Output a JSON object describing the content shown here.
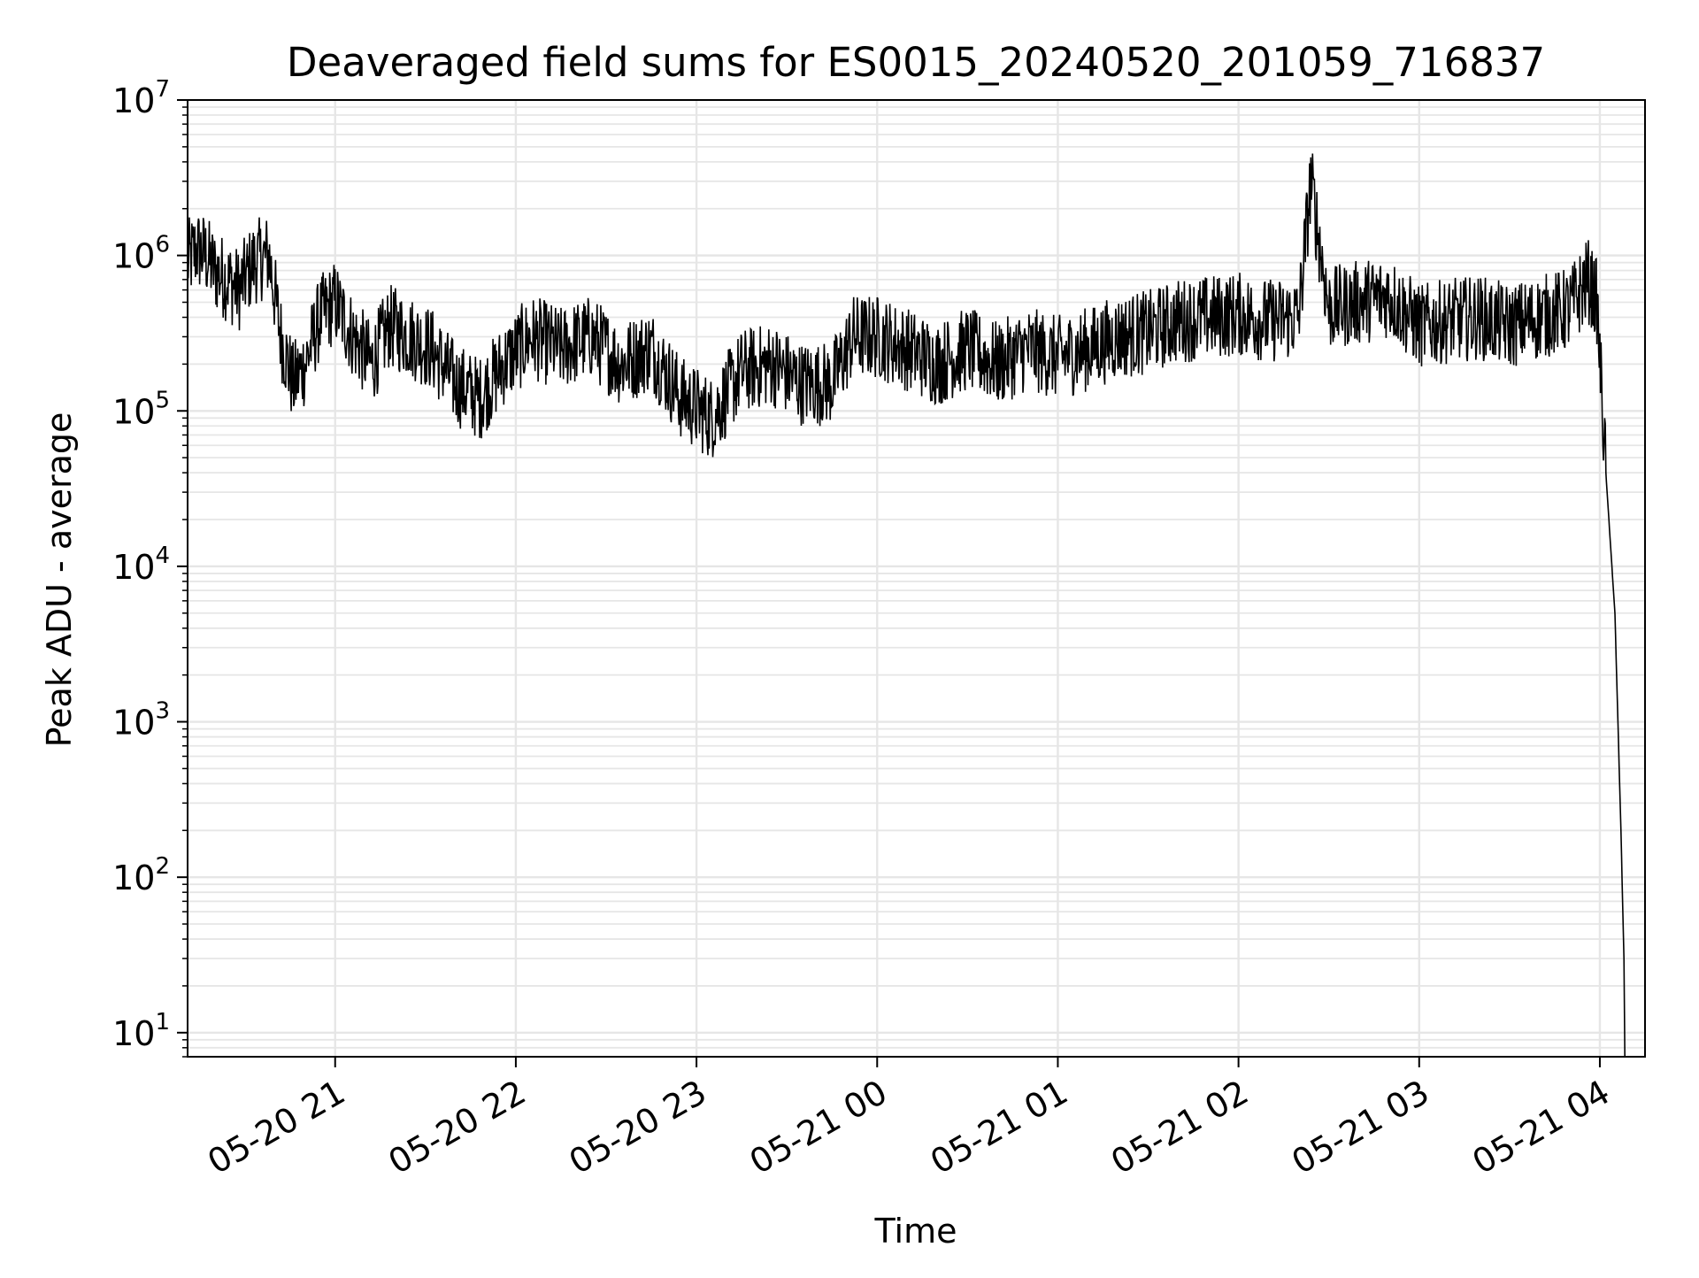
{
  "chart_data": {
    "type": "line",
    "title": "Deaveraged field sums for ES0015_20240520_201059_716837",
    "xlabel": "Time",
    "ylabel": "Peak ADU - average",
    "yscale": "log",
    "ylim": [
      7,
      10000000
    ],
    "xlim": [
      "2024-05-20 20:11",
      "2024-05-21 04:15"
    ],
    "grid": true,
    "x_ticks": [
      {
        "value": "2024-05-20 21:00",
        "label": "05-20 21"
      },
      {
        "value": "2024-05-20 22:00",
        "label": "05-20 22"
      },
      {
        "value": "2024-05-20 23:00",
        "label": "05-20 23"
      },
      {
        "value": "2024-05-21 00:00",
        "label": "05-21 00"
      },
      {
        "value": "2024-05-21 01:00",
        "label": "05-21 01"
      },
      {
        "value": "2024-05-21 02:00",
        "label": "05-21 02"
      },
      {
        "value": "2024-05-21 03:00",
        "label": "05-21 03"
      },
      {
        "value": "2024-05-21 04:00",
        "label": "05-21 04"
      }
    ],
    "y_ticks": [
      {
        "value": 10,
        "base": "10",
        "exp": "1"
      },
      {
        "value": 100,
        "base": "10",
        "exp": "2"
      },
      {
        "value": 1000,
        "base": "10",
        "exp": "3"
      },
      {
        "value": 10000,
        "base": "10",
        "exp": "4"
      },
      {
        "value": 100000,
        "base": "10",
        "exp": "5"
      },
      {
        "value": 1000000,
        "base": "10",
        "exp": "6"
      },
      {
        "value": 10000000,
        "base": "10",
        "exp": "7"
      }
    ],
    "line_color": "#000000",
    "grid_color": "#e6e6e6",
    "series": [
      {
        "x": [
          "2024-05-20 20:11",
          "2024-05-20 20:14",
          "2024-05-20 20:17",
          "2024-05-20 20:20",
          "2024-05-20 20:24",
          "2024-05-20 20:28",
          "2024-05-20 20:33",
          "2024-05-20 20:38",
          "2024-05-20 20:42",
          "2024-05-20 20:46",
          "2024-05-20 20:50",
          "2024-05-20 20:55",
          "2024-05-20 21:00",
          "2024-05-20 21:06",
          "2024-05-20 21:12",
          "2024-05-20 21:18",
          "2024-05-20 21:25",
          "2024-05-20 21:32",
          "2024-05-20 21:40",
          "2024-05-20 21:48",
          "2024-05-20 21:56",
          "2024-05-20 22:05",
          "2024-05-20 22:15",
          "2024-05-20 22:25",
          "2024-05-20 22:35",
          "2024-05-20 22:45",
          "2024-05-20 22:55",
          "2024-05-20 23:05",
          "2024-05-20 23:15",
          "2024-05-20 23:25",
          "2024-05-20 23:35",
          "2024-05-20 23:45",
          "2024-05-20 23:52",
          "2024-05-21 00:00",
          "2024-05-21 00:10",
          "2024-05-21 00:20",
          "2024-05-21 00:30",
          "2024-05-21 00:40",
          "2024-05-21 00:50",
          "2024-05-21 01:00",
          "2024-05-21 01:10",
          "2024-05-21 01:20",
          "2024-05-21 01:30",
          "2024-05-21 01:40",
          "2024-05-21 01:50",
          "2024-05-21 02:00",
          "2024-05-21 02:10",
          "2024-05-21 02:20",
          "2024-05-21 02:24",
          "2024-05-21 02:30",
          "2024-05-21 02:40",
          "2024-05-21 02:50",
          "2024-05-21 03:00",
          "2024-05-21 03:10",
          "2024-05-21 03:20",
          "2024-05-21 03:30",
          "2024-05-21 03:40",
          "2024-05-21 03:50",
          "2024-05-21 03:56",
          "2024-05-21 03:59",
          "2024-05-21 04:02",
          "2024-05-21 04:05",
          "2024-05-21 04:07",
          "2024-05-21 04:08"
        ],
        "y": [
          900000,
          1100000,
          1000000,
          800000,
          700000,
          600000,
          900000,
          1000000,
          300000,
          150000,
          200000,
          400000,
          500000,
          300000,
          200000,
          350000,
          300000,
          250000,
          150000,
          120000,
          200000,
          300000,
          250000,
          300000,
          200000,
          250000,
          120000,
          90000,
          180000,
          200000,
          150000,
          150000,
          300000,
          300000,
          250000,
          200000,
          250000,
          200000,
          250000,
          220000,
          250000,
          300000,
          320000,
          380000,
          400000,
          420000,
          380000,
          400000,
          3000000,
          450000,
          500000,
          550000,
          350000,
          380000,
          400000,
          350000,
          400000,
          450000,
          700000,
          500000,
          40000,
          5000,
          200,
          30
        ]
      }
    ]
  }
}
